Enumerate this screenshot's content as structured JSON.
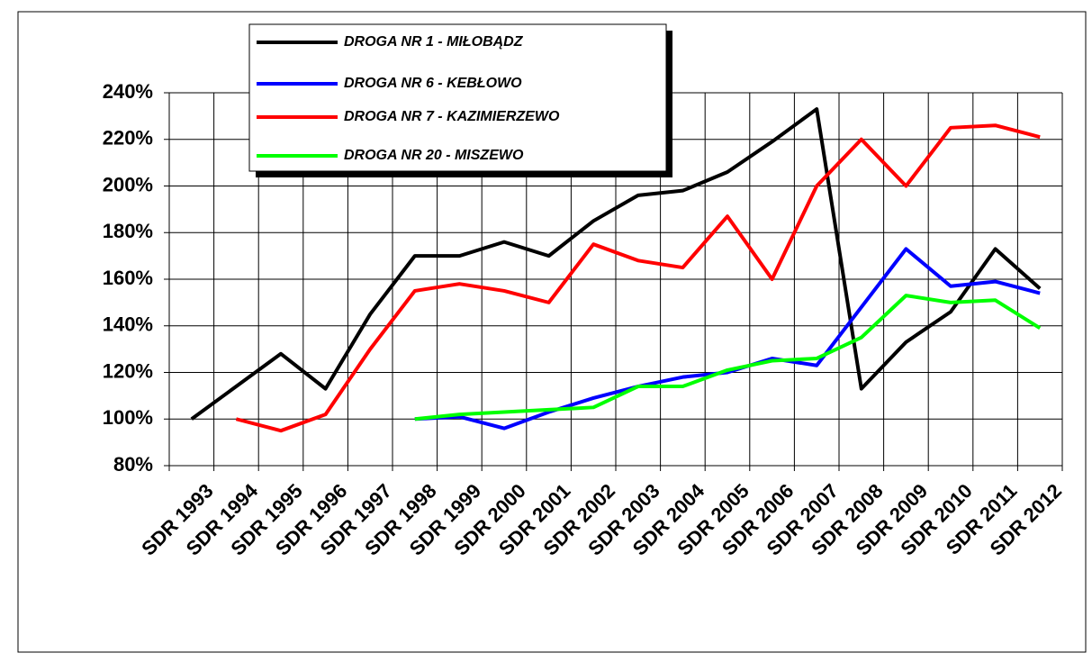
{
  "chart_data": {
    "type": "line",
    "categories": [
      "SDR 1993",
      "SDR 1994",
      "SDR 1995",
      "SDR 1996",
      "SDR 1997",
      "SDR 1998",
      "SDR 1999",
      "SDR 2000",
      "SDR 2001",
      "SDR 2002",
      "SDR 2003",
      "SDR 2004",
      "SDR 2005",
      "SDR 2006",
      "SDR 2007",
      "SDR 2008",
      "SDR 2009",
      "SDR 2010",
      "SDR 2011",
      "SDR 2012"
    ],
    "series": [
      {
        "name": "DROGA NR 1 - MIŁOBĄDZ",
        "color": "#000000",
        "values": [
          100,
          114,
          128,
          113,
          145,
          170,
          170,
          176,
          170,
          185,
          196,
          198,
          206,
          219,
          233,
          113,
          133,
          146,
          173,
          156
        ]
      },
      {
        "name": "DROGA NR 6 - KEBŁOWO",
        "color": "#0000ff",
        "values": [
          null,
          null,
          null,
          null,
          null,
          100,
          101,
          96,
          103,
          109,
          114,
          118,
          120,
          126,
          123,
          148,
          173,
          157,
          159,
          154
        ]
      },
      {
        "name": "DROGA NR 7 - KAZIMIERZEWO",
        "color": "#ff0000",
        "values": [
          null,
          100,
          95,
          102,
          130,
          155,
          158,
          155,
          150,
          175,
          168,
          165,
          187,
          160,
          200,
          220,
          200,
          225,
          226,
          221
        ]
      },
      {
        "name": "DROGA NR 20 - MISZEWO",
        "color": "#00ff00",
        "values": [
          null,
          null,
          null,
          null,
          null,
          100,
          102,
          103,
          104,
          105,
          114,
          114,
          121,
          125,
          126,
          135,
          153,
          150,
          151,
          139
        ]
      }
    ],
    "ylim": [
      80,
      240
    ],
    "yticks": [
      {
        "value": 80,
        "label": "80%"
      },
      {
        "value": 100,
        "label": "100%"
      },
      {
        "value": 120,
        "label": "120%"
      },
      {
        "value": 140,
        "label": "140%"
      },
      {
        "value": 160,
        "label": "160%"
      },
      {
        "value": 180,
        "label": "180%"
      },
      {
        "value": 200,
        "label": "200%"
      },
      {
        "value": 220,
        "label": "220%"
      },
      {
        "value": 240,
        "label": "240%"
      }
    ],
    "grid": true
  }
}
